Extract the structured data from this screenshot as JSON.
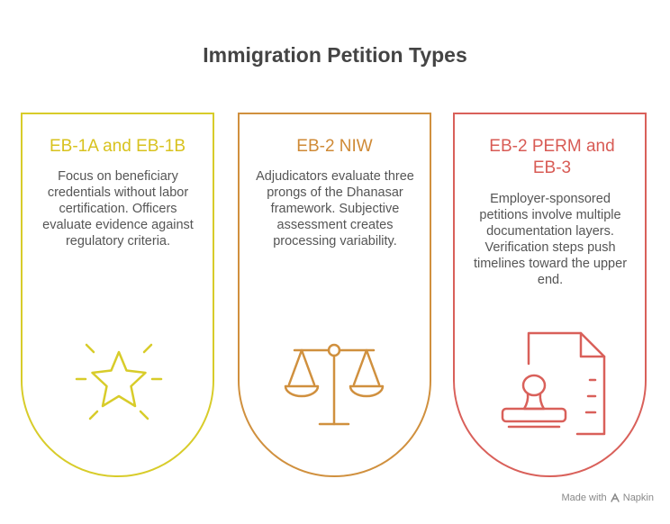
{
  "title": "Immigration Petition Types",
  "cards": [
    {
      "heading": "EB-1A and EB-1B",
      "body": "Focus on beneficiary credentials without labor certification. Officers evaluate evidence against regulatory criteria.",
      "icon": "star-icon",
      "color": "#d8cc2a"
    },
    {
      "heading": "EB-2 NIW",
      "body": "Adjudicators evaluate three prongs of the Dhanasar framework. Subjective assessment creates processing variability.",
      "icon": "scales-icon",
      "color": "#d0903e"
    },
    {
      "heading": "EB-2 PERM and EB-3",
      "body": "Employer-sponsored petitions involve multiple documentation layers. Verification steps push timelines toward the upper end.",
      "icon": "document-stamp-icon",
      "color": "#d9605a"
    }
  ],
  "footer": {
    "made_with": "Made with",
    "brand": "Napkin"
  }
}
